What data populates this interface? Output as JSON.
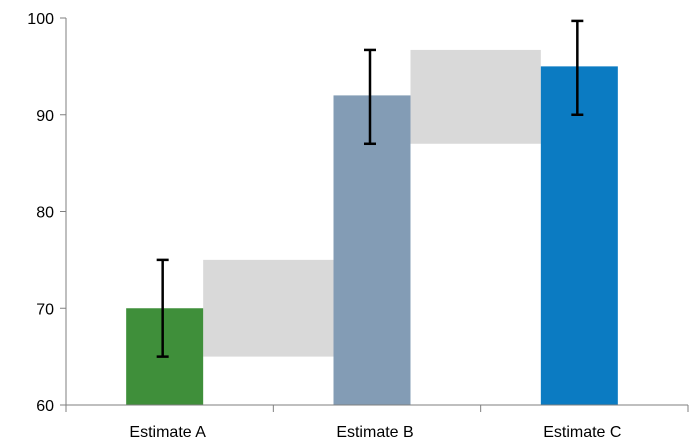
{
  "chart_data": {
    "type": "bar",
    "title": "",
    "xlabel": "",
    "ylabel": "",
    "categories": [
      "Estimate A",
      "Estimate B",
      "Estimate C"
    ],
    "values": [
      70,
      92,
      95
    ],
    "error_bars": [
      {
        "low": 65,
        "high": 75
      },
      {
        "low": 87,
        "high": 96.7
      },
      {
        "low": 90,
        "high": 99.7
      }
    ],
    "connector_bands": [
      {
        "from": "Estimate A",
        "to": "Estimate B",
        "low": 65,
        "high": 75
      },
      {
        "from": "Estimate B",
        "to": "Estimate C",
        "low": 87,
        "high": 96.7
      }
    ],
    "ylim": [
      60,
      100
    ],
    "yticks": [
      60,
      70,
      80,
      90,
      100
    ],
    "grid": false,
    "colors": {
      "bars": [
        "#3f8f3a",
        "#839cb5",
        "#0b7bc2"
      ],
      "band": "#d9d9d9",
      "axis": "#7f7f7f",
      "error": "#000000"
    }
  }
}
